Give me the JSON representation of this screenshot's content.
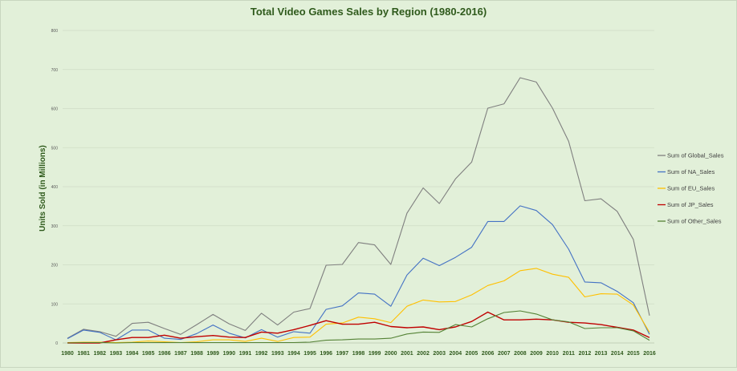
{
  "chart_data": {
    "type": "line",
    "title": "Total Video Games Sales by Region (1980-2016)",
    "xlabel": "",
    "ylabel": "Units Sold (in Millions)",
    "ylim": [
      0,
      800
    ],
    "yticks": [
      0,
      100,
      200,
      300,
      400,
      500,
      600,
      700,
      800
    ],
    "grid": true,
    "legend_position": "right",
    "categories": [
      "1980",
      "1981",
      "1982",
      "1983",
      "1984",
      "1985",
      "1986",
      "1987",
      "1988",
      "1989",
      "1990",
      "1991",
      "1992",
      "1993",
      "1994",
      "1995",
      "1996",
      "1997",
      "1998",
      "1999",
      "2000",
      "2001",
      "2002",
      "2003",
      "2004",
      "2005",
      "2006",
      "2007",
      "2008",
      "2009",
      "2010",
      "2011",
      "2012",
      "2013",
      "2014",
      "2015",
      "2016"
    ],
    "series": [
      {
        "name": "Sum of Global_Sales",
        "color": "#7f7f7f",
        "values": [
          12,
          35,
          29,
          17,
          50,
          53,
          37,
          22,
          47,
          73,
          49,
          32,
          76,
          46,
          79,
          88,
          199,
          201,
          257,
          251,
          201,
          332,
          397,
          357,
          420,
          463,
          601,
          612,
          679,
          668,
          601,
          516,
          364,
          369,
          337,
          265,
          70
        ]
      },
      {
        "name": "Sum of NA_Sales",
        "color": "#4472c4",
        "values": [
          11,
          33,
          27,
          8,
          33,
          33,
          12,
          9,
          24,
          46,
          25,
          13,
          34,
          15,
          29,
          25,
          86,
          95,
          128,
          125,
          94,
          174,
          217,
          198,
          219,
          245,
          311,
          311,
          351,
          339,
          303,
          240,
          156,
          154,
          132,
          103,
          22
        ]
      },
      {
        "name": "Sum of EU_Sales",
        "color": "#ffc000",
        "values": [
          1,
          2,
          2,
          1,
          2,
          5,
          3,
          1,
          3,
          8,
          8,
          4,
          12,
          4,
          14,
          15,
          48,
          51,
          66,
          62,
          52,
          94,
          110,
          105,
          106,
          123,
          147,
          159,
          185,
          191,
          176,
          168,
          118,
          126,
          125,
          97,
          27
        ]
      },
      {
        "name": "Sum of JP_Sales",
        "color": "#c00000",
        "values": [
          0,
          0,
          0,
          8,
          14,
          14,
          20,
          12,
          16,
          19,
          15,
          14,
          28,
          25,
          34,
          45,
          57,
          48,
          48,
          53,
          42,
          39,
          41,
          34,
          41,
          55,
          79,
          59,
          59,
          61,
          59,
          53,
          51,
          47,
          40,
          33,
          14
        ]
      },
      {
        "name": "Sum of Other_Sales",
        "color": "#548235",
        "values": [
          0,
          1,
          1,
          0,
          1,
          1,
          1,
          1,
          1,
          1,
          1,
          1,
          1,
          1,
          1,
          2,
          7,
          8,
          10,
          10,
          12,
          23,
          28,
          27,
          47,
          41,
          62,
          78,
          82,
          74,
          59,
          54,
          37,
          39,
          39,
          31,
          7
        ]
      }
    ]
  }
}
